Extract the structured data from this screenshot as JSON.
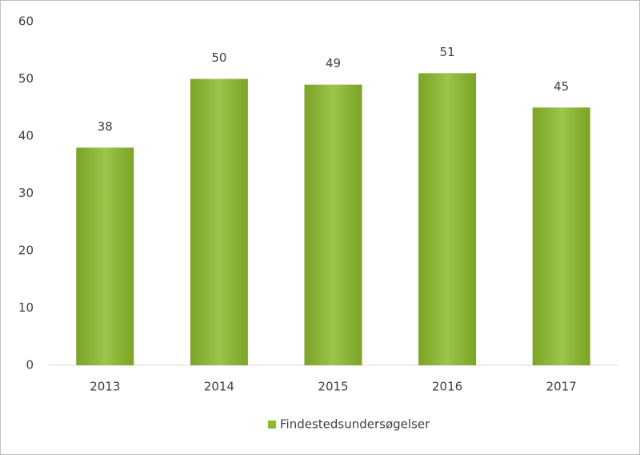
{
  "chart_data": {
    "type": "bar",
    "categories": [
      "2013",
      "2014",
      "2015",
      "2016",
      "2017"
    ],
    "series": [
      {
        "name": "Findestedsundersøgelser",
        "color": "#8dbb2c",
        "values": [
          38,
          50,
          49,
          51,
          45
        ]
      }
    ],
    "ylim": [
      0,
      60
    ],
    "yticks": [
      0,
      10,
      20,
      30,
      40,
      50,
      60
    ],
    "grid": false,
    "legend": "bottom"
  }
}
